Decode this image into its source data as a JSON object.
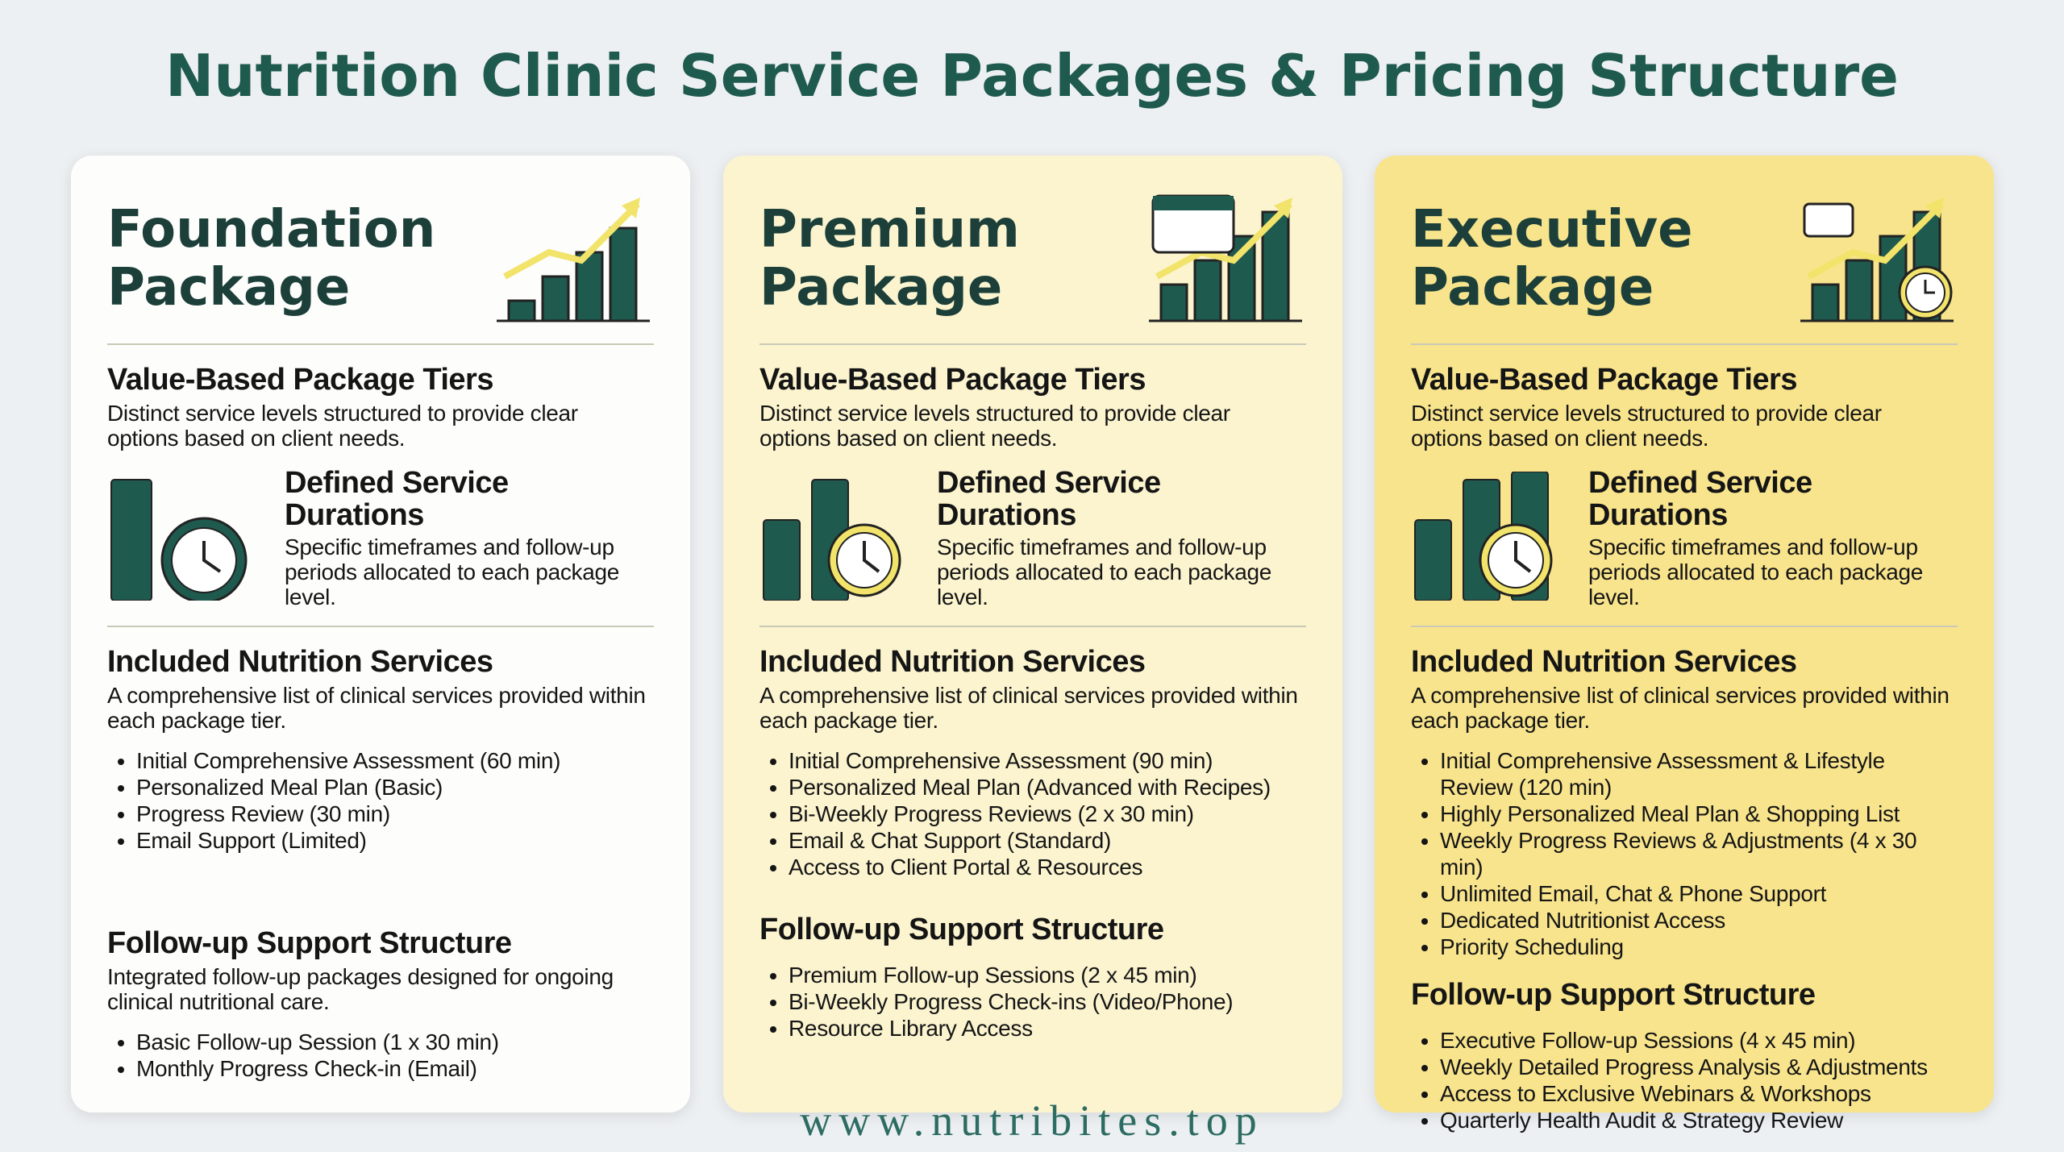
{
  "header": {
    "title": "Nutrition Clinic Service Packages & Pricing Structure"
  },
  "packages": [
    {
      "name": "Foundation Package",
      "tiers": {
        "heading": "Value-Based Package Tiers",
        "text": "Distinct service levels structured to provide clear options based on client needs."
      },
      "durations": {
        "heading": "Defined Service Durations",
        "text": "Specific timeframes and follow-up periods allocated to each package level."
      },
      "services": {
        "heading": "Included Nutrition Services",
        "text": "A comprehensive list of clinical services provided within each package tier.",
        "items": [
          "Initial Comprehensive Assessment (60 min)",
          "Personalized Meal Plan (Basic)",
          "Progress Review (30 min)",
          "Email Support (Limited)"
        ]
      },
      "followup": {
        "heading": "Follow-up Support Structure",
        "text": "Integrated follow-up packages designed for ongoing clinical nutritional care.",
        "items": [
          "Basic Follow-up Session (1 x 30 min)",
          "Monthly Progress Check-in (Email)"
        ]
      }
    },
    {
      "name": "Premium Package",
      "tiers": {
        "heading": "Value-Based Package Tiers",
        "text": "Distinct service levels structured to provide clear options based on client needs."
      },
      "durations": {
        "heading": "Defined Service Durations",
        "text": "Specific timeframes and follow-up periods allocated to each package level."
      },
      "services": {
        "heading": "Included Nutrition Services",
        "text": "A comprehensive list of clinical services provided within each package tier.",
        "items": [
          "Initial Comprehensive Assessment (90 min)",
          "Personalized Meal Plan (Advanced with Recipes)",
          "Bi-Weekly Progress Reviews (2 x 30 min)",
          "Email & Chat Support (Standard)",
          "Access to Client Portal & Resources"
        ]
      },
      "followup": {
        "heading": "Follow-up Support Structure",
        "items": [
          "Premium Follow-up Sessions (2 x 45 min)",
          "Bi-Weekly Progress Check-ins (Video/Phone)",
          "Resource Library Access"
        ]
      }
    },
    {
      "name": "Executive Package",
      "tiers": {
        "heading": "Value-Based Package Tiers",
        "text": "Distinct service levels structured to provide clear options based on client needs."
      },
      "durations": {
        "heading": "Defined Service Durations",
        "text": "Specific timeframes and follow-up periods allocated to each package level."
      },
      "services": {
        "heading": "Included Nutrition Services",
        "text": "A comprehensive list of clinical services provided within each package tier.",
        "items": [
          "Initial Comprehensive Assessment & Lifestyle Review (120 min)",
          "Highly Personalized Meal Plan & Shopping List",
          "Weekly Progress Reviews & Adjustments (4 x 30 min)",
          "Unlimited Email, Chat & Phone Support",
          "Dedicated Nutritionist Access",
          "Priority Scheduling"
        ]
      },
      "followup": {
        "heading": "Follow-up Support Structure",
        "items": [
          "Executive Follow-up Sessions (4 x 45 min)",
          "Weekly Detailed Progress Analysis & Adjustments",
          "Access to Exclusive Webinars & Workshops",
          "Quarterly Health Audit & Strategy Review"
        ]
      }
    }
  ],
  "footer": {
    "url": "www.nutribites.top"
  }
}
